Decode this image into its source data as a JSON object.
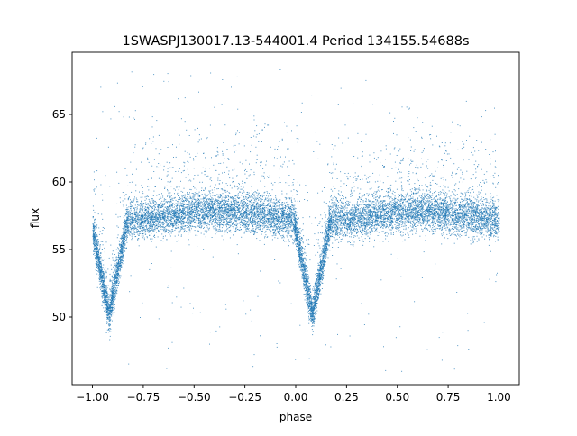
{
  "chart_data": {
    "type": "scatter",
    "title": "1SWASPJ130017.13-544001.4 Period 134155.54688s",
    "xlabel": "phase",
    "ylabel": "flux",
    "xlim": [
      -1.1,
      1.1
    ],
    "ylim": [
      45.0,
      69.6
    ],
    "x_ticks": [
      -1.0,
      -0.75,
      -0.5,
      -0.25,
      0.0,
      0.25,
      0.5,
      0.75,
      1.0
    ],
    "x_tick_labels": [
      "−1.00",
      "−0.75",
      "−0.50",
      "−0.25",
      "0.00",
      "0.25",
      "0.50",
      "0.75",
      "1.00"
    ],
    "y_ticks": [
      50,
      55,
      60,
      65
    ],
    "y_tick_labels": [
      "50",
      "55",
      "60",
      "65"
    ],
    "grid": false,
    "legend": "none",
    "marker_color": "#1f77b4",
    "phase_range": [
      -1.0,
      1.0
    ],
    "baseline_flux": 57.5,
    "baseline_scatter": 0.7,
    "eclipses": [
      {
        "phase_center": -0.92,
        "min_flux": 50.5
      },
      {
        "phase_center": 0.08,
        "min_flux": 50.5
      }
    ],
    "outlier_flux_range": [
      46.0,
      68.5
    ]
  }
}
